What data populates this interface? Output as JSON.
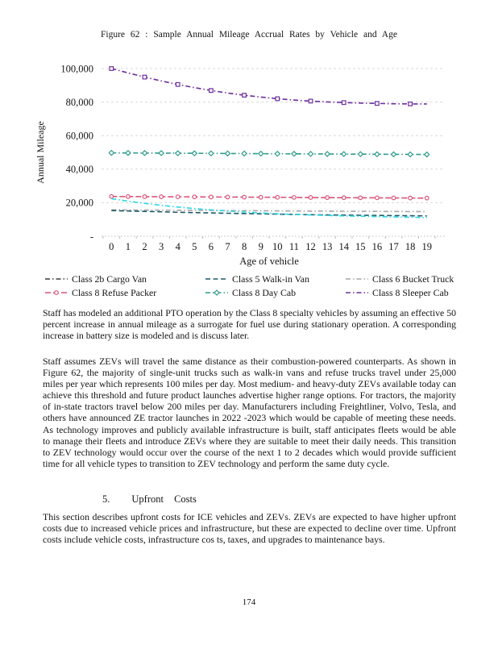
{
  "figure": {
    "title": "Figure 62 : Sample Annual Mileage Accrual Rates by Vehicle and Age"
  },
  "chart_data": {
    "type": "line",
    "title": "Figure 62: Sample Annual Mileage Accrual Rates by Vehicle and Age",
    "xlabel": "Age of vehicle",
    "ylabel": "Annual Mileage",
    "x": [
      0,
      1,
      2,
      3,
      4,
      5,
      6,
      7,
      8,
      9,
      10,
      11,
      12,
      13,
      14,
      15,
      16,
      17,
      18,
      19
    ],
    "ylim": [
      0,
      100000
    ],
    "yticks": {
      "values": [
        0,
        20000,
        40000,
        60000,
        80000,
        100000
      ],
      "labels": [
        "-",
        "20,000",
        "40,000",
        "60,000",
        "80,000",
        "100,000"
      ]
    },
    "grid": true,
    "legend_position": "bottom",
    "gridline_color": "#d9d9d9",
    "axis_color": "#bfbfbf",
    "draw_order": [
      5,
      4,
      3,
      2,
      1,
      0
    ],
    "series": [
      {
        "name": "Class 2b Cargo Van",
        "color": "#2bd9e6",
        "legend_color": "#3b3b3b",
        "dash": "dashdot",
        "marker": "none",
        "values": [
          22400,
          20900,
          19600,
          18400,
          17400,
          16500,
          15700,
          15000,
          14400,
          13900,
          13400,
          13000,
          12700,
          12400,
          12100,
          11900,
          11700,
          11500,
          11300,
          11100
        ]
      },
      {
        "name": "Class 5 Walk-in Van",
        "color": "#1d5a68",
        "dash": "dash",
        "marker": "none",
        "values": [
          15300,
          15050,
          14800,
          14550,
          14300,
          14100,
          13900,
          13700,
          13500,
          13300,
          13150,
          13000,
          12850,
          12700,
          12600,
          12500,
          12400,
          12300,
          12200,
          12100
        ]
      },
      {
        "name": "Class 6 Bucket Truck",
        "color": "#a6a6a6",
        "dash": "dashdot",
        "marker": "none",
        "values": [
          15700,
          15650,
          15600,
          15550,
          15500,
          15450,
          15400,
          15300,
          15250,
          15200,
          15100,
          15050,
          15000,
          14950,
          14900,
          14850,
          14800,
          14750,
          14700,
          14650
        ]
      },
      {
        "name": "Class 8 Refuse Packer",
        "color": "#d9537a",
        "dash": "longdash",
        "marker": "circle",
        "values": [
          23700,
          23650,
          23600,
          23550,
          23500,
          23450,
          23400,
          23350,
          23300,
          23250,
          23200,
          23150,
          23100,
          23050,
          23000,
          22950,
          22900,
          22850,
          22800,
          22750
        ]
      },
      {
        "name": "Class 8 Day Cab",
        "color": "#2f9c8c",
        "dash": "dashdot",
        "marker": "diamond",
        "values": [
          49700,
          49650,
          49600,
          49550,
          49500,
          49450,
          49400,
          49350,
          49300,
          49250,
          49200,
          49150,
          49100,
          49050,
          49000,
          48950,
          48900,
          48850,
          48800,
          48750
        ]
      },
      {
        "name": "Class 8 Sleeper Cab",
        "color": "#6d2e9e",
        "dash": "dashdot",
        "marker": "square",
        "values": [
          100000,
          97400,
          94900,
          92600,
          90500,
          88600,
          86900,
          85400,
          84100,
          83000,
          82000,
          81200,
          80600,
          80100,
          79700,
          79400,
          79200,
          79000,
          78900,
          78900
        ]
      }
    ]
  },
  "body": {
    "p1": "Staff has modeled an additional PTO operation by the Class 8 specialty vehicles by assuming an effective 50 percent increase in annual mileage as a surrogate for fuel use during stationary operation. A corresponding increase in battery size is modeled and is discuss later.",
    "p2": "Staff assumes ZEVs will travel the same distance as their combustion-powered counterparts. As shown in Figure 62, the majority of single-unit trucks such as walk-in vans and refuse trucks travel under 25,000 miles per year which represents 100 miles per day. Most medium- and heavy-duty ZEVs available today can achieve this threshold and future product launches advertise higher range options. For tractors, the majority of in-state tractors travel below 200 miles per day. Manufacturers including Freightliner, Volvo, Tesla, and others have announced ZE tractor launches in 2022 -2023 which would be capable of meeting these needs. As technology improves and publicly available infrastructure is built, staff anticipates fleets would be able to manage their fleets and introduce ZEVs where they are suitable to meet their daily needs. This transition to ZEV technology would occur over the course of the next 1 to 2 decades which would provide sufficient time for all vehicle types to transition to ZEV technology and perform the same duty cycle.",
    "p3": "This section describes upfront costs for ICE vehicles and ZEVs. ZEVs are expected to have higher upfront costs due to increased vehicle prices and infrastructure, but these are expected to decline over time. Upfront costs include vehicle costs, infrastructure cos ts, taxes, and upgrades to maintenance bays."
  },
  "heading": {
    "number": "5.",
    "label": "Upfront Costs"
  },
  "page": {
    "number": "174"
  }
}
